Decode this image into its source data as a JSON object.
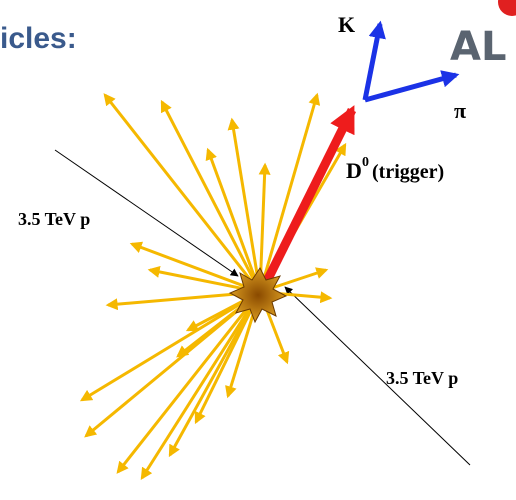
{
  "header": {
    "title": "icles:",
    "logo": "AL"
  },
  "diagram": {
    "kaon": "K",
    "pion": "π",
    "d_meson": "D",
    "d_meson_superscript": "0",
    "trigger": "(trigger)",
    "beam_left": "3.5 TeV p",
    "beam_right": "3.5 TeV p"
  }
}
